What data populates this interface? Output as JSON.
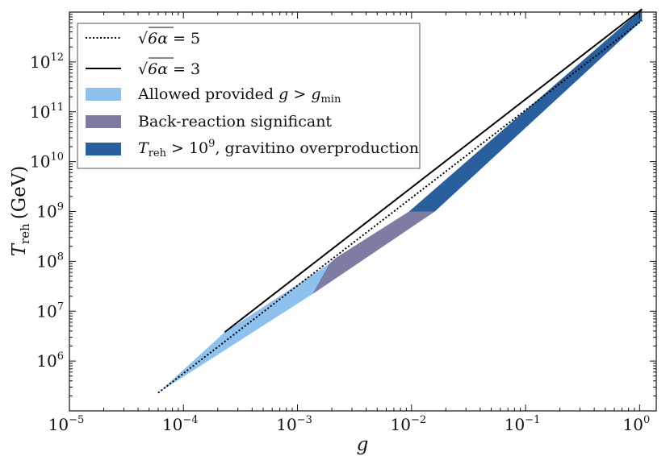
{
  "chart_data": {
    "type": "area",
    "xscale": "log",
    "yscale": "log",
    "xlim": [
      1e-05,
      1.4
    ],
    "ylim": [
      100000,
      10000000000000
    ],
    "xlabel": "g",
    "ylabel": "T_reh (GeV)",
    "ylabel_parts": {
      "main": "T",
      "sub": "reh",
      "unit": "(GeV)"
    },
    "grid": false,
    "legend_position": "upper-left",
    "xticks": [
      {
        "value": 1e-05,
        "base": "10",
        "exp": "−5"
      },
      {
        "value": 0.0001,
        "base": "10",
        "exp": "−4"
      },
      {
        "value": 0.001,
        "base": "10",
        "exp": "−3"
      },
      {
        "value": 0.01,
        "base": "10",
        "exp": "−2"
      },
      {
        "value": 0.1,
        "base": "10",
        "exp": "−1"
      },
      {
        "value": 1,
        "base": "10",
        "exp": "0"
      }
    ],
    "yticks": [
      {
        "value": 1000000,
        "base": "10",
        "exp": "6"
      },
      {
        "value": 10000000,
        "base": "10",
        "exp": "7"
      },
      {
        "value": 100000000,
        "base": "10",
        "exp": "8"
      },
      {
        "value": 1000000000,
        "base": "10",
        "exp": "9"
      },
      {
        "value": 10000000000,
        "base": "10",
        "exp": "10"
      },
      {
        "value": 100000000000,
        "base": "10",
        "exp": "11"
      },
      {
        "value": 1000000000000,
        "base": "10",
        "exp": "12"
      }
    ],
    "series": [
      {
        "name": "√(6α) = 5",
        "kind": "line",
        "style": "dotted",
        "color": "#000000",
        "x": [
          6e-05,
          1.05
        ],
        "y": [
          230000,
          6800000000000
        ]
      },
      {
        "name": "√(6α) = 3",
        "kind": "line",
        "style": "solid",
        "color": "#000000",
        "x": [
          0.00023,
          1.05
        ],
        "y": [
          3800000,
          11500000000000
        ]
      },
      {
        "name": "Allowed provided g > g_min",
        "kind": "area",
        "color": "#8fc1ef",
        "polygon": [
          [
            6e-05,
            230000
          ],
          [
            0.00023,
            3800000
          ],
          [
            0.0019,
            90000000
          ],
          [
            0.00135,
            22000000
          ]
        ]
      },
      {
        "name": "Back-reaction significant",
        "kind": "area",
        "color": "#7d7ca3",
        "polygon": [
          [
            0.00135,
            22000000
          ],
          [
            0.0019,
            90000000
          ],
          [
            0.0022,
            120000000
          ],
          [
            0.0095,
            1000000000
          ],
          [
            0.016,
            1000000000
          ]
        ]
      },
      {
        "name": "T_reh > 10^9, gravitino overproduction",
        "kind": "area",
        "color": "#2a5f9e",
        "polygon": [
          [
            0.0095,
            1000000000
          ],
          [
            0.016,
            1000000000
          ],
          [
            1.05,
            6800000000000
          ],
          [
            1.05,
            11500000000000
          ]
        ]
      }
    ],
    "legend": [
      {
        "key": "dotted",
        "color": "#000000",
        "parts": {
          "pre": "√",
          "radicand": "6α",
          "post": " = 5"
        }
      },
      {
        "key": "solid",
        "color": "#000000",
        "parts": {
          "pre": "√",
          "radicand": "6α",
          "post": " = 3"
        }
      },
      {
        "key": "patch",
        "color": "#8fc1ef",
        "parts": {
          "a": "Allowed provided ",
          "b": "g",
          "c": " > ",
          "d": "g",
          "e": "min"
        }
      },
      {
        "key": "patch",
        "color": "#7d7ca3",
        "parts": {
          "a": "Back-reaction significant"
        }
      },
      {
        "key": "patch",
        "color": "#2a5f9e",
        "parts": {
          "a": "T",
          "b": "reh",
          "c": " > 10",
          "d": "9",
          "e": ", gravitino overproduction"
        }
      }
    ]
  }
}
